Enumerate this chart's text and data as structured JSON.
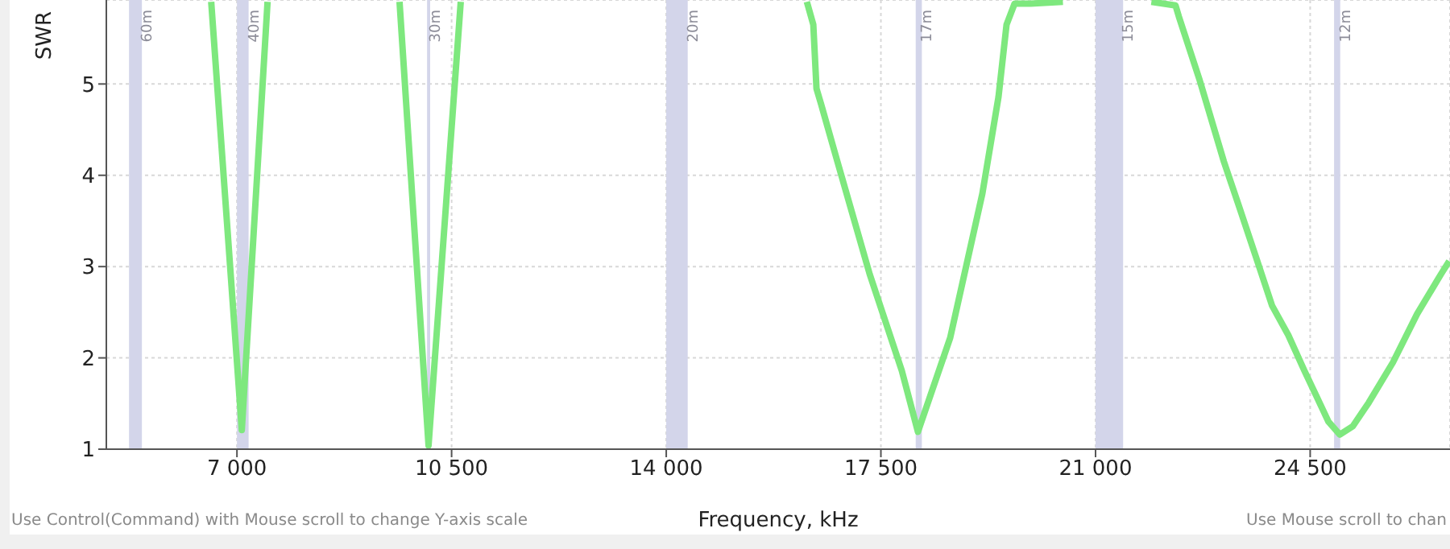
{
  "chart_data": {
    "type": "line",
    "xlabel": "Frequency, kHz",
    "ylabel": "SWR",
    "x": [
      6580,
      7079,
      7499,
      null,
      9651,
      10124,
      10649,
      null,
      16293,
      16398,
      16450,
      16529,
      16791,
      17316,
      17841,
      18104,
      18630,
      19155,
      19418,
      19549,
      19680,
      19943,
      20468,
      null,
      21911,
      22305,
      22358,
      22699,
      23093,
      23355,
      23618,
      23880,
      24143,
      24405,
      24589,
      24799,
      24983,
      25193,
      25455,
      25849,
      26243,
      26636,
      26767
    ],
    "series": [
      {
        "color": "#7ee87e",
        "values": [
          5.9,
          1.21,
          5.9,
          null,
          5.9,
          1.04,
          5.9,
          null,
          5.9,
          5.65,
          4.95,
          4.77,
          4.15,
          2.92,
          1.86,
          1.19,
          2.22,
          3.8,
          4.86,
          5.65,
          5.88,
          5.88,
          5.9,
          null,
          5.9,
          5.86,
          5.74,
          5.04,
          4.15,
          3.63,
          3.1,
          2.57,
          2.25,
          1.86,
          1.6,
          1.3,
          1.16,
          1.25,
          1.51,
          1.95,
          2.48,
          2.92,
          3.06
        ]
      }
    ],
    "xlim": [
      4870,
      26780
    ],
    "ylim": [
      1,
      5.92
    ],
    "xticks": [
      {
        "value": 7000,
        "label": "7 000"
      },
      {
        "value": 10500,
        "label": "10 500"
      },
      {
        "value": 14000,
        "label": "14 000"
      },
      {
        "value": 17500,
        "label": "17 500"
      },
      {
        "value": 21000,
        "label": "21 000"
      },
      {
        "value": 24500,
        "label": "24 500"
      }
    ],
    "yticks": [
      1,
      2,
      3,
      4,
      5
    ],
    "grid": true,
    "marker": "none",
    "line_style": "solid",
    "bands": [
      {
        "axis": "x",
        "from": 5240,
        "to": 5450,
        "label": "60m",
        "color": "#d3d5ea"
      },
      {
        "axis": "x",
        "from": 7000,
        "to": 7190,
        "label": "40m",
        "color": "#d3d5ea"
      },
      {
        "axis": "x",
        "from": 10100,
        "to": 10150,
        "label": "30m",
        "color": "#d3d5ea"
      },
      {
        "axis": "x",
        "from": 14000,
        "to": 14350,
        "label": "20m",
        "color": "#d3d5ea"
      },
      {
        "axis": "x",
        "from": 18068,
        "to": 18168,
        "label": "17m",
        "color": "#d3d5ea"
      },
      {
        "axis": "x",
        "from": 21000,
        "to": 21450,
        "label": "15m",
        "color": "#d3d5ea"
      },
      {
        "axis": "x",
        "from": 24890,
        "to": 24990,
        "label": "12m",
        "color": "#d3d5ea"
      }
    ],
    "annotations": [
      "Use Control(Command) with Mouse scroll to change Y-axis scale",
      "Use Mouse scroll to chan"
    ]
  }
}
